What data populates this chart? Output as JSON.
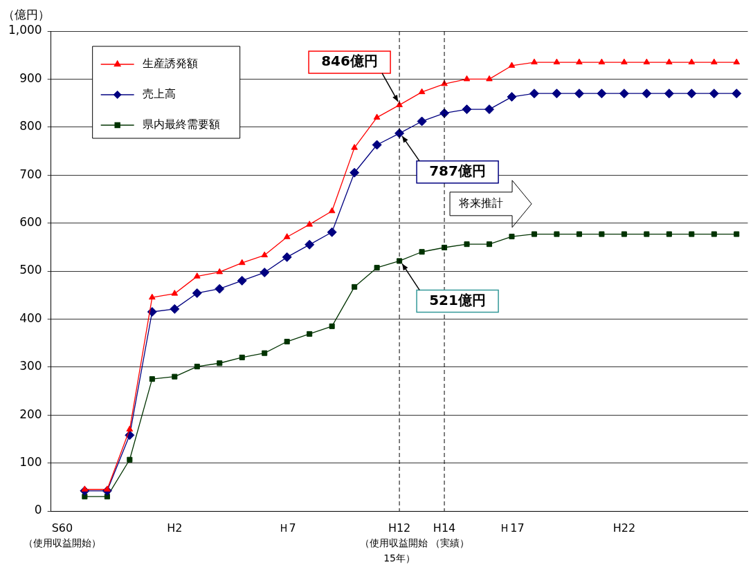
{
  "chart_data": {
    "type": "line",
    "ylabel": "（億円）",
    "categories": [
      "S60\n（使用収益開始）",
      null,
      null,
      null,
      null,
      "H2",
      null,
      null,
      null,
      null,
      "Ｈ7",
      null,
      null,
      null,
      null,
      "H12\n（使用収益開始\n15年）",
      null,
      "H14\n（実績）",
      null,
      null,
      "Ｈ17",
      null,
      null,
      null,
      null,
      "H22",
      null,
      null,
      null,
      null,
      null
    ],
    "series": [
      {
        "name": "生産誘発額",
        "color": "#ff0000",
        "marker": "triangle",
        "values": [
          null,
          45,
          45,
          170,
          445,
          453,
          489,
          498,
          517,
          533,
          571,
          597,
          625,
          757,
          820,
          846,
          873,
          890,
          900,
          900,
          928,
          935,
          935,
          935,
          935,
          935,
          935,
          935,
          935,
          935,
          935
        ]
      },
      {
        "name": "売上高",
        "color": "#000080",
        "marker": "diamond",
        "values": [
          null,
          42,
          42,
          158,
          415,
          421,
          454,
          463,
          480,
          497,
          529,
          555,
          581,
          705,
          763,
          787,
          812,
          829,
          837,
          837,
          863,
          870,
          870,
          870,
          870,
          870,
          870,
          870,
          870,
          870,
          870
        ]
      },
      {
        "name": "県内最終需要額",
        "color": "#003300",
        "marker": "square",
        "values": [
          null,
          30,
          30,
          107,
          275,
          280,
          301,
          308,
          320,
          329,
          353,
          369,
          385,
          467,
          507,
          521,
          540,
          549,
          556,
          556,
          572,
          577,
          577,
          577,
          577,
          577,
          577,
          577,
          577,
          577,
          577
        ]
      }
    ],
    "ylim": [
      0,
      1000
    ],
    "yticks": [
      0,
      100,
      200,
      300,
      400,
      500,
      600,
      700,
      800,
      900,
      {
        "value": 1000,
        "label": "1,000"
      }
    ],
    "grid": "y",
    "legend": "top left",
    "line_style": "solid",
    "ref_lines": [
      {
        "axis": "x",
        "value": "H12\n（使用収益開始\n15年）",
        "line_style": "dashed",
        "color": "#000000"
      },
      {
        "axis": "x",
        "value": "H14\n（実績）",
        "line_style": "dashed",
        "color": "#000000"
      }
    ],
    "annotations": [
      {
        "text": "846億円",
        "x": "H12\n（使用収益開始\n15年）",
        "y": 846
      },
      {
        "text": "787億円",
        "x": "H12\n（使用収益開始\n15年）",
        "y": 787
      },
      {
        "text": "521億円",
        "x": "H12\n（使用収益開始\n15年）",
        "y": 521
      },
      "将来推計"
    ]
  }
}
